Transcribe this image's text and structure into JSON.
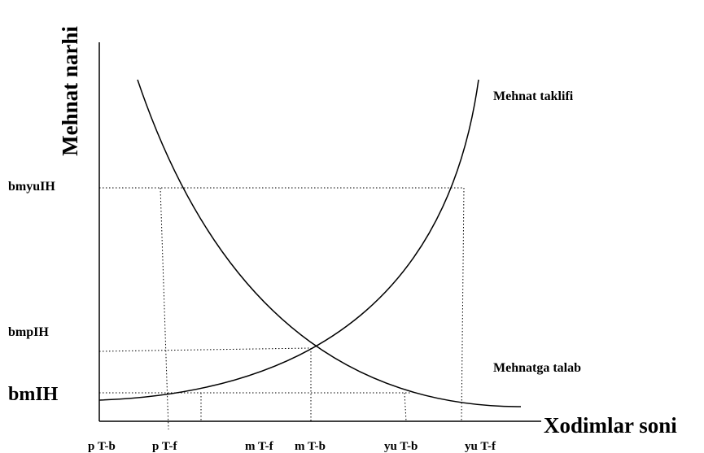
{
  "y_axis_label": "Mehnat narhi",
  "x_axis_label": "Xodimlar soni",
  "supply_label": "Mehnat taklifi",
  "demand_label": "Mehnatga talab",
  "price_levels": {
    "high": "bmyuIH",
    "mid": "bmpIH",
    "low": "bmIH"
  },
  "x_ticks": [
    "p T-b",
    "p T-f",
    "m T-f",
    "m T-b",
    "yu T-b",
    "yu T-f"
  ],
  "colors": {
    "line": "#000000",
    "background": "#ffffff"
  }
}
